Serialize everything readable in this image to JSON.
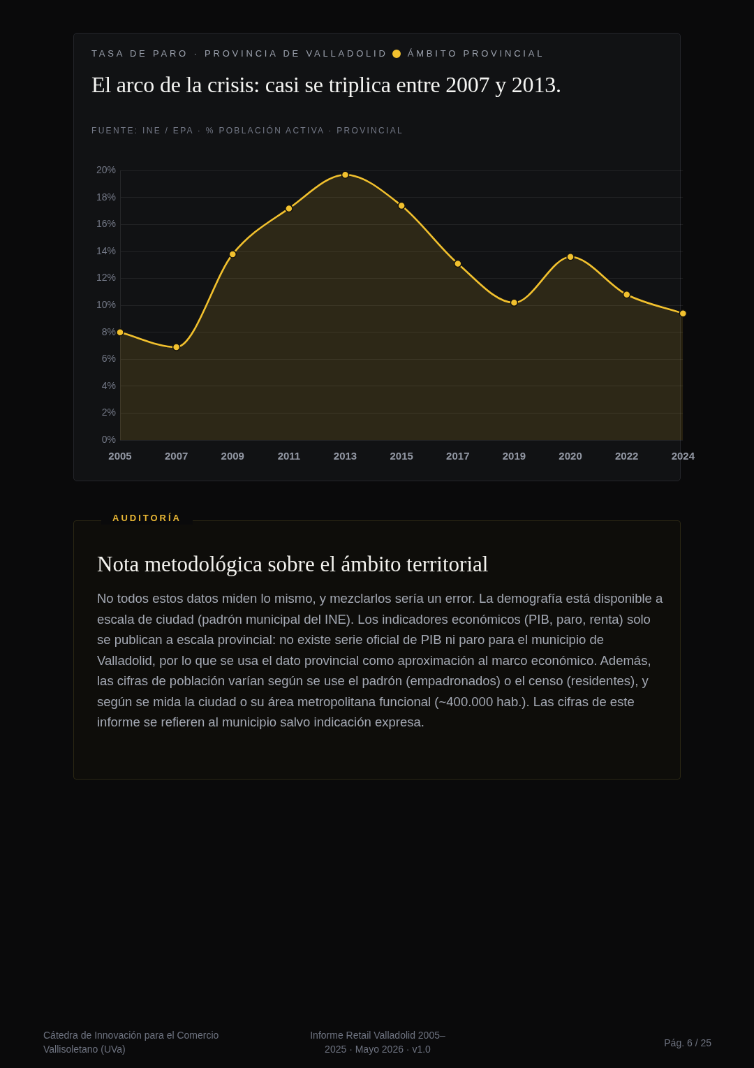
{
  "chart_data": {
    "type": "area",
    "title": "El arco de la crisis: casi se triplica entre 2007 y 2013.",
    "subtitle": "TASA DE PARO · PROVINCIA DE VALLADOLID",
    "annotations": [
      "FUENTE: INE / EPA · % POBLACIÓN ACTIVA · PROVINCIAL",
      "AUDITORÍA",
      "Nota metodológica sobre el ámbito territorial",
      "No todos estos datos miden lo mismo, y mezclarlos sería un error. La demografía está disponible a escala de ciudad (padrón municipal del INE). Los indicadores económicos (PIB, paro, renta) solo se publican a escala provincial: no existe serie oficial de PIB ni paro para el municipio de Valladolid, por lo que se usa el dato provincial como aproximación al marco económico. Además, las cifras de población varían según se use el padrón (empadronados) o el censo (residentes), y según se mida la ciudad o su área metropolitana funcional (~400.000 hab.). Las cifras de este informe se refieren al municipio salvo indicación expresa.",
      "Cátedra de Innovación para el Comercio Vallisoletano (UVa)",
      "Informe Retail Valladolid 2005–2025 · Mayo 2026 · v1.0",
      "Pág. 6 / 25"
    ],
    "categories": [
      "2005",
      "2007",
      "2009",
      "2011",
      "2013",
      "2015",
      "2017",
      "2019",
      "2020",
      "2022",
      "2024"
    ],
    "series": [
      {
        "name": "ÁMBITO PROVINCIAL",
        "color": "#f2c12e",
        "values": [
          8.0,
          6.9,
          13.8,
          17.2,
          19.7,
          17.4,
          13.1,
          10.2,
          13.6,
          10.8,
          9.4
        ]
      }
    ],
    "ylim": [
      0,
      20
    ],
    "yticks": [
      {
        "value": 0,
        "label": "0%"
      },
      {
        "value": 2,
        "label": "2%"
      },
      {
        "value": 4,
        "label": "4%"
      },
      {
        "value": 6,
        "label": "6%"
      },
      {
        "value": 8,
        "label": "8%"
      },
      {
        "value": 10,
        "label": "10%"
      },
      {
        "value": 12,
        "label": "12%"
      },
      {
        "value": 14,
        "label": "14%"
      },
      {
        "value": 16,
        "label": "16%"
      },
      {
        "value": 18,
        "label": "18%"
      },
      {
        "value": 20,
        "label": "20%"
      }
    ],
    "grid": "y",
    "legend": "top",
    "marker": "circle",
    "line_style": "solid"
  }
}
